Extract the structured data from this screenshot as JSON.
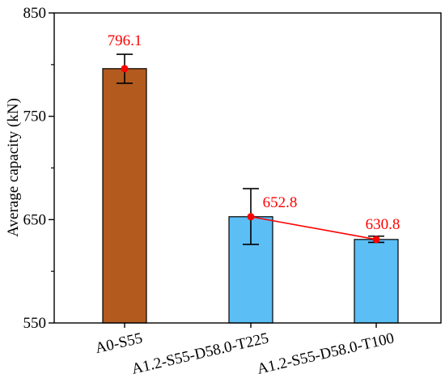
{
  "chart_data": {
    "type": "bar",
    "ylabel": "Average capacity (kN)",
    "ylim": [
      550,
      850
    ],
    "yticks": [
      550,
      650,
      750,
      850
    ],
    "grid": false,
    "categories": [
      "A0-S55",
      "A1.2-S55-D58.0-T225",
      "A1.2-S55-D58.0-T100"
    ],
    "values": [
      796.1,
      652.8,
      630.8
    ],
    "error_bars": [
      {
        "low": 782,
        "high": 810
      },
      {
        "low": 626,
        "high": 680
      },
      {
        "low": 628,
        "high": 634
      }
    ],
    "data_labels": [
      "796.1",
      "652.8",
      "630.8"
    ],
    "bar_colors": [
      "#B35A1F",
      "#5BBEF5",
      "#5BBEF5"
    ],
    "marker_color": "#FF0000",
    "label_color": "#FF0000",
    "connected_points": [
      1,
      2
    ]
  }
}
